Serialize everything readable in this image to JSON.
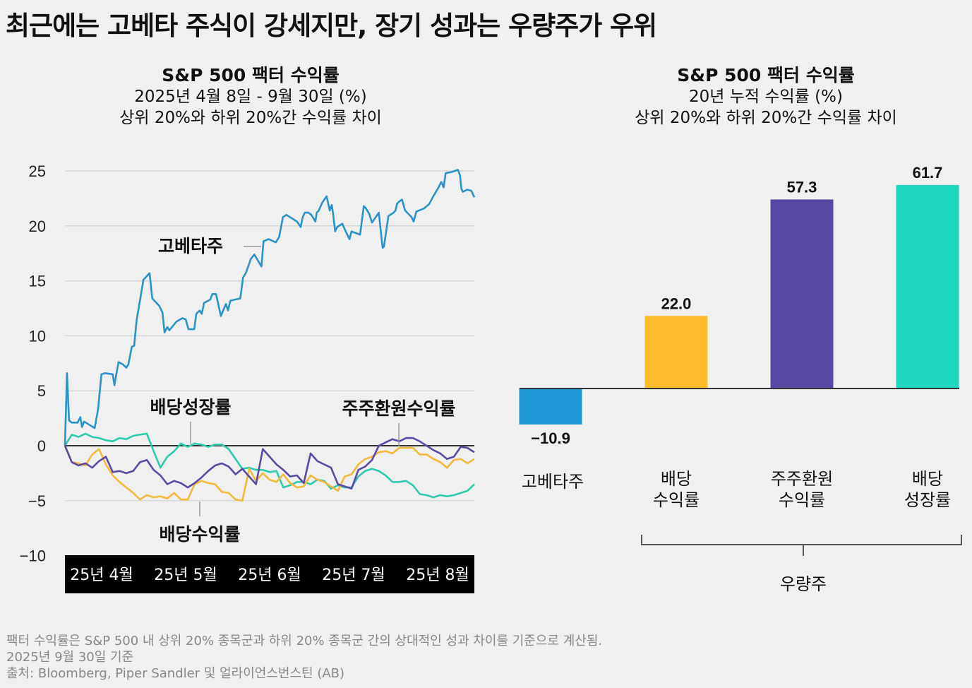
{
  "title": "최근에는 고베타 주식이 강세지만, 장기 성과는 우량주가 우위",
  "left_header": {
    "title": "S&P 500 팩터 수익률",
    "subtitle": "2025년 4월 8일 - 9월 30일 (%)",
    "subtitle2": "상위 20%와 하위 20%간 수익률 차이"
  },
  "right_header": {
    "title": "S&P 500 팩터 수익률",
    "subtitle": "20년 누적 수익률 (%)",
    "subtitle2": "상위 20%와 하위 20%간 수익률 차이"
  },
  "footnotes": [
    "팩터 수익률은 S&P 500 내 상위 20% 종목군과 하위 20% 종목군 간의 상대적인 성과 차이를 기준으로 계산됨.",
    "2025년 9월 30일 기준",
    "출처: Bloomberg, Piper Sandler 및 얼라이언스번스틴 (AB)"
  ],
  "chart_data": [
    {
      "type": "line",
      "title": "S&P 500 팩터 수익률",
      "subtitle": "2025년 4월 8일 - 9월 30일 (%)",
      "xlabel": "",
      "ylabel": "",
      "ylim": [
        -10,
        25
      ],
      "yticks": [
        25,
        20,
        15,
        10,
        5,
        0,
        -5,
        -10
      ],
      "ytick_labels": [
        "25",
        "20",
        "15",
        "10",
        "5",
        "0",
        "−5",
        "−10"
      ],
      "xticks": [
        "25년 4월",
        "25년 5월",
        "25년 6월",
        "25년 7월",
        "25년 8월"
      ],
      "grid": true,
      "x_index_max": 120,
      "series": [
        {
          "name": "고베타주",
          "color": "#2b93c9",
          "x": [
            0,
            0.6,
            1.2,
            2,
            3.7,
            4.5,
            5,
            5.6,
            7.7,
            8.7,
            9.7,
            10.7,
            11.8,
            14,
            14.5,
            15.7,
            17,
            18,
            18.6,
            19.6,
            20.3,
            21,
            23,
            24.8,
            25.6,
            27.7,
            28.6,
            29.2,
            30,
            30.6,
            32.7,
            34.4,
            35.4,
            36.2,
            37.9,
            38.5,
            39.5,
            40.1,
            40.8,
            42.6,
            43.2,
            44.3,
            45.7,
            47.2,
            47.8,
            48.5,
            51.4,
            52.2,
            53,
            54.5,
            55.5,
            57.6,
            58.2,
            59.7,
            61.8,
            62.8,
            63.9,
            64.9,
            67,
            68,
            69.1,
            69.7,
            70.3,
            71.4,
            72.2,
            73.4,
            73.8,
            74.4,
            75.4,
            76.7,
            77.6,
            78.2,
            78.6,
            79.2,
            79.8,
            81.3,
            82.3,
            83.4,
            84,
            84.8,
            86.5,
            87.6,
            88.2,
            89.2,
            90,
            91.1,
            92,
            93.1,
            93.5,
            94.8,
            96.3,
            96.9,
            97.3,
            97.9,
            98.8,
            99.7,
            101.6,
            102.2,
            103,
            105.3,
            106.8,
            107.8,
            109.5,
            110.3,
            111,
            111.6,
            113.3,
            115.2,
            115.8,
            116.2,
            116.6,
            117.9,
            119.1,
            120
          ],
          "values": [
            0,
            6.6,
            2.3,
            2.1,
            2.1,
            2.6,
            1.7,
            2.2,
            1.8,
            1.6,
            3.3,
            6.5,
            6.6,
            6.5,
            5.5,
            7.6,
            7.4,
            7.1,
            7.4,
            9,
            9.1,
            11.4,
            15.1,
            15.7,
            13.4,
            12.7,
            12.1,
            10.3,
            10.8,
            10.5,
            11.3,
            11.6,
            11.5,
            10.6,
            10.6,
            12,
            12.3,
            12,
            13,
            13.3,
            13.8,
            13.8,
            11.8,
            12.9,
            12.3,
            13.2,
            13.4,
            15.3,
            15.7,
            17,
            17.4,
            16.3,
            18.6,
            18.8,
            18.5,
            19,
            20.8,
            21,
            20.6,
            20.4,
            19.9,
            20.8,
            21.2,
            21.2,
            21,
            20.4,
            21.2,
            21.4,
            22.1,
            22.7,
            21.4,
            21.9,
            21.1,
            19.5,
            19.9,
            20.2,
            19.5,
            18.8,
            19.5,
            19.4,
            19.2,
            21.8,
            21.6,
            21.1,
            20.3,
            20.8,
            21.2,
            18,
            18.1,
            20.9,
            21.2,
            21.4,
            22,
            22.2,
            22.4,
            21.4,
            20.8,
            20.4,
            21.3,
            21.6,
            22,
            22.6,
            23.5,
            24,
            23.5,
            24.8,
            24.9,
            25.1,
            24.6,
            23.4,
            23.1,
            23.3,
            23.2,
            22.6
          ]
        },
        {
          "name": "배당성장률",
          "color": "#2fc9ae",
          "x": [
            0,
            2,
            4,
            6,
            8,
            10,
            12,
            14,
            16,
            18,
            20,
            22,
            24,
            26,
            28,
            30,
            32,
            34,
            36,
            38,
            40,
            42,
            44,
            46,
            48,
            50,
            52,
            54,
            56,
            58,
            60,
            62,
            64,
            66,
            68,
            70,
            72,
            74,
            76,
            78,
            80,
            82,
            84,
            86,
            88,
            90,
            92,
            94,
            96,
            98,
            100,
            102,
            104,
            106,
            108,
            110,
            112,
            114,
            116,
            118,
            120
          ],
          "values": [
            0,
            1,
            0.8,
            1.1,
            0.8,
            0.7,
            0.5,
            0.4,
            0.7,
            0.6,
            0.9,
            1,
            1.1,
            -0.5,
            -2,
            -1,
            -0.5,
            0.2,
            -0.1,
            0.2,
            0.1,
            -0.1,
            0.1,
            0.1,
            -0.3,
            -1.2,
            -2.1,
            -2,
            -2.2,
            -2.2,
            -2.4,
            -2.3,
            -3.8,
            -3.6,
            -3.3,
            -3.3,
            -3.5,
            -3.1,
            -3.2,
            -3.9,
            -3.6,
            -3.8,
            -3.8,
            -2.8,
            -2.3,
            -2.1,
            -2.3,
            -2.7,
            -3.3,
            -3.3,
            -3.2,
            -3.6,
            -4.4,
            -4.5,
            -4.7,
            -4.5,
            -4.6,
            -4.5,
            -4.3,
            -4.1,
            -3.5
          ],
          "values_note": "approximate read-off"
        },
        {
          "name": "주주환원수익률",
          "color": "#5b4aa3",
          "x": [
            0,
            2,
            4,
            6,
            8,
            10,
            12,
            14,
            16,
            18,
            20,
            22,
            24,
            26,
            28,
            30,
            32,
            34,
            36,
            38,
            40,
            42,
            44,
            46,
            48,
            50,
            52,
            54,
            56,
            58,
            60,
            62,
            64,
            66,
            68,
            70,
            72,
            74,
            76,
            78,
            80,
            82,
            84,
            86,
            88,
            90,
            92,
            94,
            96,
            98,
            100,
            102,
            104,
            106,
            108,
            110,
            112,
            114,
            116,
            118,
            120
          ],
          "values": [
            0,
            -1.5,
            -1.8,
            -1.6,
            -2,
            -1.4,
            -1,
            -2.4,
            -2.3,
            -2.5,
            -2.3,
            -1.5,
            -1.3,
            -2.2,
            -2.7,
            -3.5,
            -3.2,
            -3.4,
            -3.8,
            -3.4,
            -2.9,
            -2.3,
            -1.8,
            -1.6,
            -1.9,
            -2.6,
            -2.1,
            -2.8,
            -3.5,
            -0.3,
            -1,
            -1.7,
            -2.2,
            -2.8,
            -2.7,
            -3.4,
            -0.7,
            -1.4,
            -1.7,
            -2,
            -3.5,
            -3.7,
            -3.9,
            -2.2,
            -1.9,
            -1.3,
            0,
            0.3,
            0.6,
            0.4,
            0.7,
            0.7,
            0.4,
            0,
            -0.4,
            -0.7,
            -1.2,
            -1,
            -0.1,
            -0.2,
            -0.6
          ],
          "values_note": "approximate read-off"
        },
        {
          "name": "배당수익률",
          "color": "#f2b93b",
          "x": [
            0,
            2,
            4,
            6,
            8,
            10,
            12,
            14,
            16,
            18,
            20,
            22,
            24,
            26,
            28,
            30,
            32,
            34,
            36,
            38,
            40,
            42,
            44,
            46,
            48,
            50,
            52,
            54,
            56,
            58,
            60,
            62,
            64,
            66,
            68,
            70,
            72,
            74,
            76,
            78,
            80,
            82,
            84,
            86,
            88,
            90,
            92,
            94,
            96,
            98,
            100,
            102,
            104,
            106,
            108,
            110,
            112,
            114,
            116,
            118,
            120
          ],
          "values": [
            0,
            -1.5,
            -1.6,
            -1.8,
            -0.8,
            -0.3,
            -1.7,
            -2.7,
            -3.3,
            -3.8,
            -4.3,
            -4.9,
            -4.5,
            -4.7,
            -4.6,
            -4.8,
            -4.3,
            -4.9,
            -4.9,
            -3.5,
            -3.2,
            -3.4,
            -3.5,
            -4.2,
            -4.3,
            -4.9,
            -5,
            -2.1,
            -3.2,
            -2.5,
            -3.1,
            -3.3,
            -2.6,
            -3.4,
            -3.8,
            -3.7,
            -2.7,
            -3.1,
            -3.3,
            -3.7,
            -4.1,
            -2.8,
            -2.6,
            -1.7,
            -1.2,
            -1,
            -0.6,
            -0.5,
            -0.7,
            -0.2,
            -0.2,
            -0.2,
            -0.8,
            -0.8,
            -1.2,
            -1.5,
            -2,
            -1.3,
            -1.2,
            -1.6,
            -1.2
          ],
          "values_note": "approximate read-off"
        }
      ],
      "annotations": [
        {
          "text": "고베타주",
          "series": "고베타주"
        },
        {
          "text": "배당성장률",
          "series": "배당성장률"
        },
        {
          "text": "주주환원수익률",
          "series": "주주환원수익률"
        },
        {
          "text": "배당수익률",
          "series": "배당수익률"
        }
      ]
    },
    {
      "type": "bar",
      "title": "S&P 500 팩터 수익률",
      "subtitle": "20년 누적 수익률 (%)",
      "categories": [
        [
          "고베타주"
        ],
        [
          "배당",
          "수익률"
        ],
        [
          "주주환원",
          "수익률"
        ],
        [
          "배당",
          "성장률"
        ]
      ],
      "values": [
        -10.9,
        22.0,
        57.3,
        61.7
      ],
      "value_labels": [
        "−10.9",
        "22.0",
        "57.3",
        "61.7"
      ],
      "colors": [
        "#1f98d6",
        "#fdbd2a",
        "#5848a3",
        "#1fd6be"
      ],
      "grouping": {
        "label": "우량주",
        "members": [
          1,
          2,
          3
        ]
      },
      "ylim": [
        -12,
        62
      ],
      "grid": false
    }
  ]
}
